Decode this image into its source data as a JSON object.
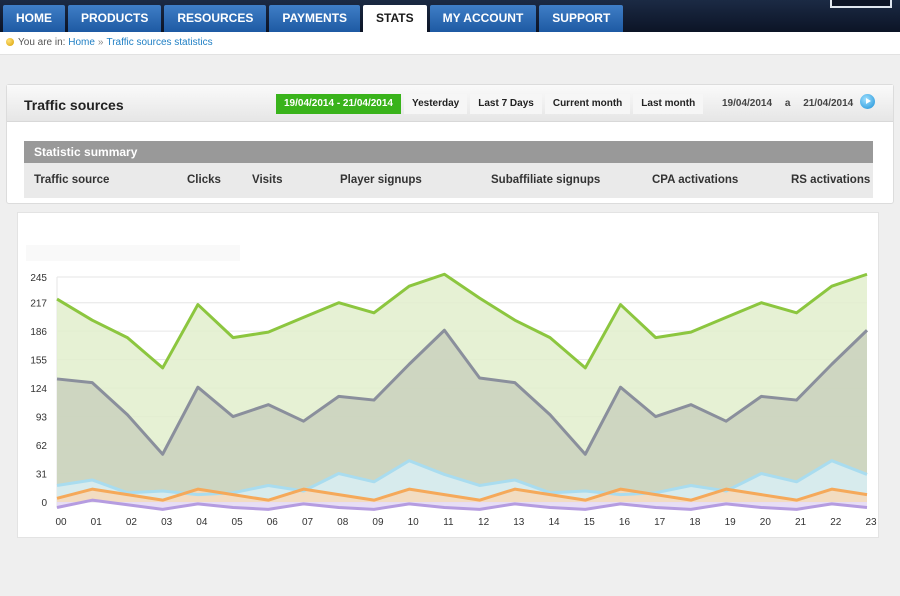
{
  "nav": {
    "tabs": [
      {
        "label": "HOME",
        "active": false
      },
      {
        "label": "PRODUCTS",
        "active": false
      },
      {
        "label": "RESOURCES",
        "active": false
      },
      {
        "label": "PAYMENTS",
        "active": false
      },
      {
        "label": "STATS",
        "active": true
      },
      {
        "label": "MY ACCOUNT",
        "active": false
      },
      {
        "label": "SUPPORT",
        "active": false
      }
    ]
  },
  "breadcrumb": {
    "prefix": "You are in:",
    "items": [
      "Home",
      "Traffic sources statistics"
    ],
    "separator": "»"
  },
  "panel": {
    "title": "Traffic sources",
    "ranges": [
      {
        "label": "19/04/2014 - 21/04/2014",
        "active": true
      },
      {
        "label": "Yesterday",
        "active": false
      },
      {
        "label": "Last 7 Days",
        "active": false
      },
      {
        "label": "Current month",
        "active": false
      },
      {
        "label": "Last month",
        "active": false
      }
    ],
    "date_from": "19/04/2014",
    "date_sep": "a",
    "date_to": "21/04/2014"
  },
  "summary": {
    "title": "Statistic summary",
    "columns": [
      "Traffic source",
      "Clicks",
      "Visits",
      "Player signups",
      "Subaffiliate signups",
      "CPA activations",
      "RS activations"
    ]
  },
  "colors": {
    "active_range": "#39b31b",
    "nav_tab": "#2a69b3",
    "series_green": "#8cc63f",
    "series_gray": "#8a8f9c",
    "series_lightblue": "#a9dcef",
    "series_orange": "#f5a95a",
    "series_purple": "#b59ce0"
  },
  "chart_data": {
    "type": "area",
    "x": [
      "00",
      "01",
      "02",
      "03",
      "04",
      "05",
      "06",
      "07",
      "08",
      "09",
      "10",
      "11",
      "12",
      "13",
      "14",
      "15",
      "16",
      "17",
      "18",
      "19",
      "20",
      "21",
      "22",
      "23"
    ],
    "yticks": [
      0,
      31,
      62,
      93,
      124,
      155,
      186,
      217,
      245
    ],
    "ylim": [
      0,
      245
    ],
    "grid": true,
    "series": [
      {
        "color": "#8cc63f",
        "fill": "#e2efcc",
        "values": [
          221,
          198,
          179,
          146,
          215,
          179,
          185,
          201,
          217,
          206,
          235,
          248,
          222,
          198,
          179,
          146,
          215,
          179,
          185,
          201,
          217,
          206,
          235,
          248
        ]
      },
      {
        "color": "#8a8f9c",
        "fill": "#c9d1bd",
        "values": [
          134,
          130,
          95,
          52,
          125,
          93,
          106,
          88,
          115,
          111,
          150,
          187,
          135,
          130,
          95,
          52,
          125,
          93,
          106,
          88,
          115,
          111,
          150,
          187
        ]
      },
      {
        "color": "#a9dcef",
        "fill": "#d8eef5",
        "values": [
          18,
          24,
          10,
          12,
          8,
          10,
          18,
          12,
          31,
          22,
          45,
          30,
          18,
          24,
          10,
          12,
          8,
          10,
          18,
          12,
          31,
          22,
          45,
          30
        ]
      },
      {
        "color": "#f5a95a",
        "fill": "#f7d9b8",
        "values": [
          4,
          14,
          8,
          2,
          14,
          8,
          2,
          14,
          8,
          2,
          14,
          8,
          2,
          14,
          8,
          2,
          14,
          8,
          2,
          14,
          8,
          2,
          14,
          8
        ]
      },
      {
        "color": "#b59ce0",
        "fill": "#e3d8f3",
        "values": [
          -6,
          2,
          -3,
          -8,
          -2,
          -6,
          -8,
          -2,
          -6,
          -8,
          -2,
          -6,
          -8,
          -2,
          -6,
          -8,
          -2,
          -6,
          -8,
          -2,
          -6,
          -8,
          -2,
          -6
        ]
      }
    ]
  }
}
